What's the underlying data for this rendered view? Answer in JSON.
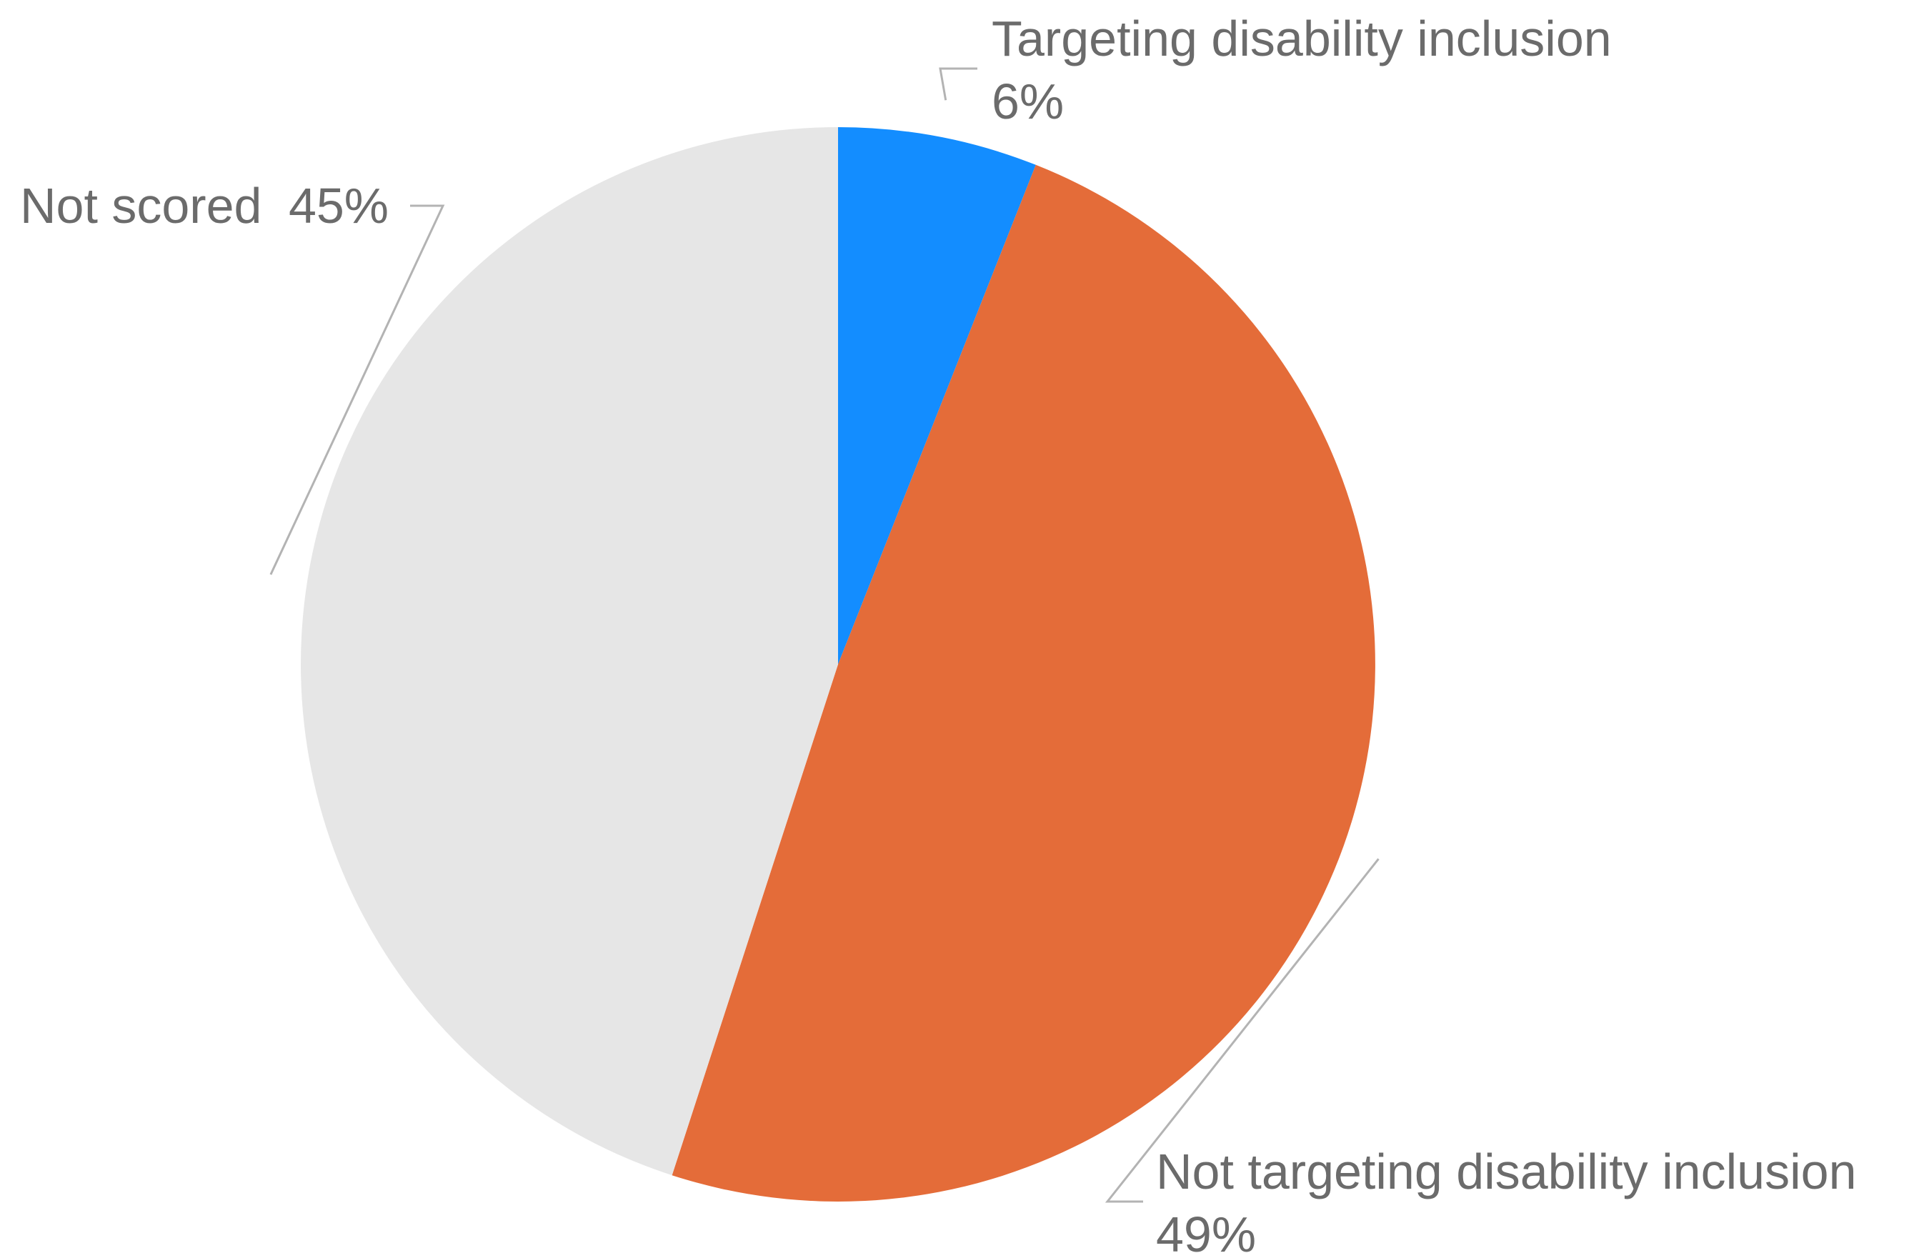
{
  "chart_data": {
    "type": "pie",
    "title": "",
    "start_angle_deg": 0,
    "direction": "clockwise",
    "slices": [
      {
        "label": "Targeting disability inclusion",
        "value": 6,
        "value_label": "6%",
        "color": "#138dff"
      },
      {
        "label": "Not targeting disability inclusion",
        "value": 49,
        "value_label": "49%",
        "color": "#e46c39"
      },
      {
        "label": "Not scored",
        "value": 45,
        "value_label": "45%",
        "color": "#e6e6e6"
      }
    ],
    "legend": "none",
    "labels": "outside-with-leader-lines",
    "leader_line_color": "#b3b3b3",
    "label_color": "#6b6b6b"
  }
}
